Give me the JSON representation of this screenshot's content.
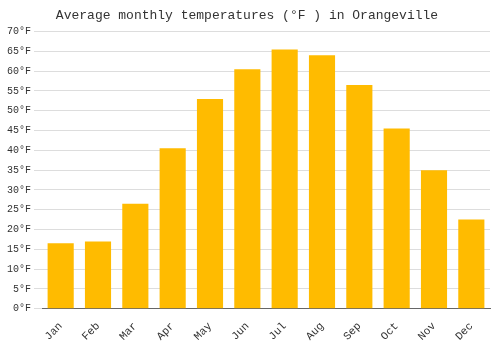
{
  "chart_data": {
    "type": "bar",
    "title": "Average monthly temperatures (°F ) in Orangeville",
    "categories": [
      "Jan",
      "Feb",
      "Mar",
      "Apr",
      "May",
      "Jun",
      "Jul",
      "Aug",
      "Sep",
      "Oct",
      "Nov",
      "Dec"
    ],
    "values": [
      16.5,
      17.0,
      26.5,
      40.5,
      53.0,
      60.5,
      65.5,
      64.0,
      56.5,
      45.5,
      35.0,
      22.5
    ],
    "color": "#FFBB00",
    "ylim": [
      0,
      70
    ],
    "yticks": [
      {
        "value": 0,
        "label": "0°F"
      },
      {
        "value": 5,
        "label": "5°F"
      },
      {
        "value": 10,
        "label": "10°F"
      },
      {
        "value": 15,
        "label": "15°F"
      },
      {
        "value": 20,
        "label": "20°F"
      },
      {
        "value": 25,
        "label": "25°F"
      },
      {
        "value": 30,
        "label": "30°F"
      },
      {
        "value": 35,
        "label": "35°F"
      },
      {
        "value": 40,
        "label": "40°F"
      },
      {
        "value": 45,
        "label": "45°F"
      },
      {
        "value": 50,
        "label": "50°F"
      },
      {
        "value": 55,
        "label": "55°F"
      },
      {
        "value": 60,
        "label": "60°F"
      },
      {
        "value": 65,
        "label": "65°F"
      },
      {
        "value": 70,
        "label": "70°F"
      }
    ],
    "grid": true
  }
}
